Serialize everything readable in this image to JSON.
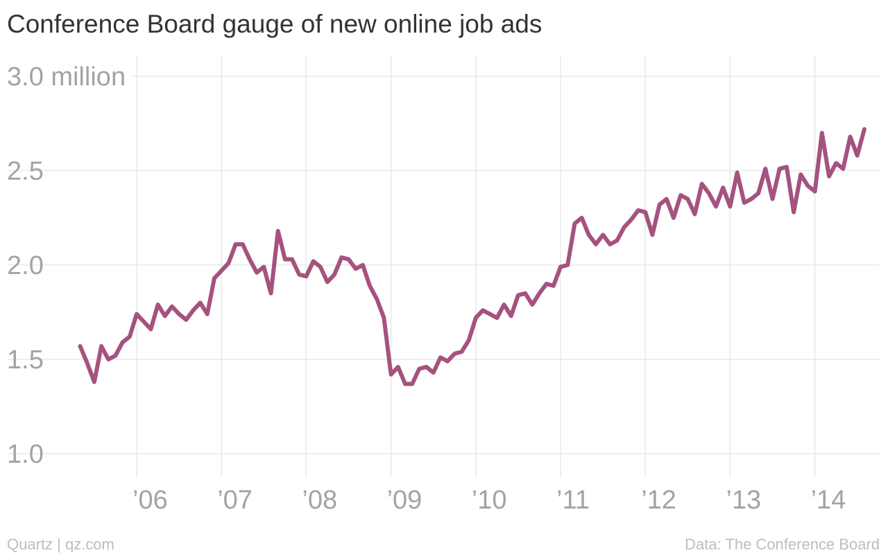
{
  "chart_data": {
    "type": "line",
    "title": "Conference Board gauge of new online job ads",
    "xlabel": "",
    "ylabel": "",
    "ylim": [
      1.0,
      3.0
    ],
    "y_ticks": [
      1.0,
      1.5,
      2.0,
      2.5,
      3.0
    ],
    "y_tick_labels": [
      "1.0",
      "1.5",
      "2.0",
      "2.5",
      "3.0 million"
    ],
    "x_tick_years": [
      2006,
      2007,
      2008,
      2009,
      2010,
      2011,
      2012,
      2013,
      2014
    ],
    "x_tick_labels": [
      "’06",
      "’07",
      "’08",
      "’09",
      "’10",
      "’11",
      "’12",
      "’13",
      "’14"
    ],
    "grid": true,
    "line_color": "#a5527f",
    "series": [
      {
        "start": "2005-05",
        "values": [
          1.57,
          1.48,
          1.38,
          1.57,
          1.5,
          1.52,
          1.59,
          1.62,
          1.74,
          1.7,
          1.66,
          1.79,
          1.73,
          1.78,
          1.74,
          1.71,
          1.76,
          1.8,
          1.74,
          1.93,
          1.97,
          2.01,
          2.11,
          2.11,
          2.03,
          1.96,
          1.99,
          1.85,
          2.18,
          2.03,
          2.03,
          1.95,
          1.94,
          2.02,
          1.99,
          1.91,
          1.95,
          2.04,
          2.03,
          1.98,
          2.0,
          1.89,
          1.82,
          1.72,
          1.42,
          1.46,
          1.37,
          1.37,
          1.45,
          1.46,
          1.43,
          1.51,
          1.49,
          1.53,
          1.54,
          1.6,
          1.72,
          1.76,
          1.74,
          1.72,
          1.79,
          1.73,
          1.84,
          1.85,
          1.79,
          1.85,
          1.9,
          1.89,
          1.99,
          2.0,
          2.22,
          2.25,
          2.16,
          2.11,
          2.16,
          2.11,
          2.13,
          2.2,
          2.24,
          2.29,
          2.28,
          2.16,
          2.32,
          2.35,
          2.25,
          2.37,
          2.35,
          2.27,
          2.43,
          2.38,
          2.31,
          2.41,
          2.31,
          2.49,
          2.33,
          2.35,
          2.38,
          2.51,
          2.35,
          2.51,
          2.52,
          2.28,
          2.48,
          2.42,
          2.39,
          2.7,
          2.47,
          2.54,
          2.51,
          2.68,
          2.58,
          2.72
        ]
      }
    ]
  },
  "footer": {
    "left": "Quartz | qz.com",
    "right": "Data: The Conference Board"
  }
}
